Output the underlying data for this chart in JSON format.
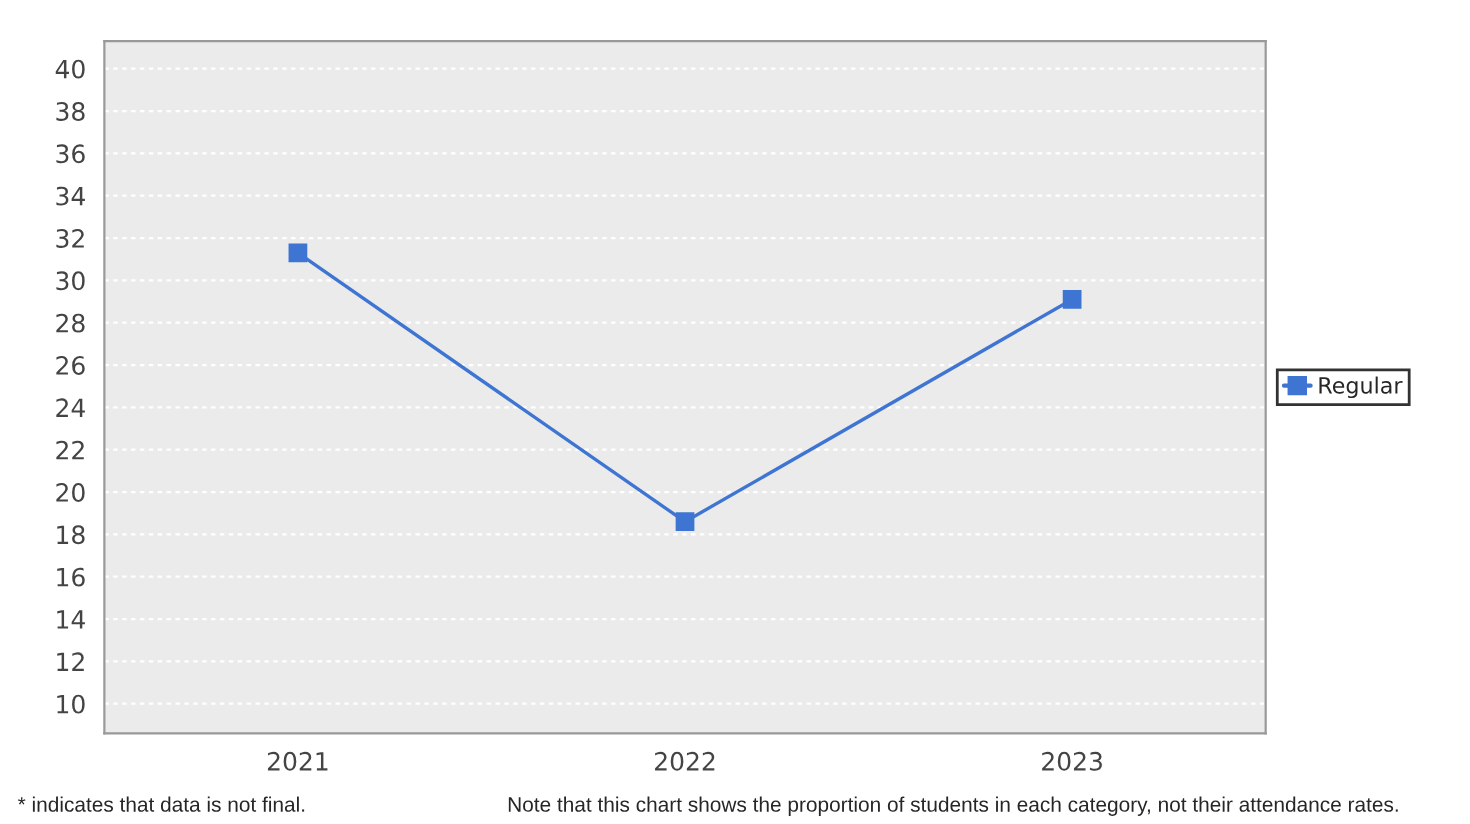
{
  "chart_data": {
    "type": "line",
    "categories": [
      "2021",
      "2022",
      "2023"
    ],
    "series": [
      {
        "name": "Regular",
        "color": "#3f75d2",
        "values": [
          31.3,
          18.6,
          29.1
        ]
      }
    ],
    "ylim": [
      8.6,
      41.3
    ],
    "yticks": [
      10,
      12,
      14,
      16,
      18,
      20,
      22,
      24,
      26,
      28,
      30,
      32,
      34,
      36,
      38,
      40
    ],
    "grid": "y",
    "legend": "right",
    "marker": "square",
    "line_style": "solid",
    "annotations": [
      "* indicates that data is not final.",
      "Note that this chart shows the proportion of students in each category, not their attendance rates."
    ]
  }
}
